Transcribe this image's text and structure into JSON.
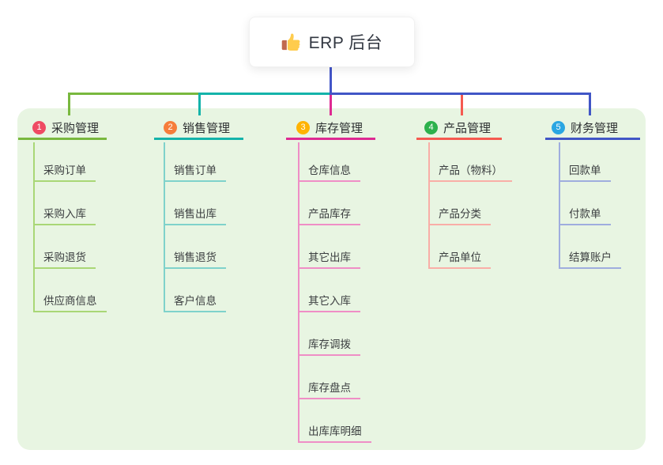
{
  "root": {
    "title": "ERP 后台",
    "icon": "thumbs-up-icon",
    "connector_color": "#4355c8"
  },
  "panel": {
    "background": "#e8f5e2"
  },
  "branches": [
    {
      "badge": "1",
      "badge_color": "#ef4b63",
      "label": "采购管理",
      "line_color": "#79b83e",
      "child_line_color": "#a9d776",
      "children": [
        "采购订单",
        "采购入库",
        "采购退货",
        "供应商信息"
      ]
    },
    {
      "badge": "2",
      "badge_color": "#f67d3b",
      "label": "销售管理",
      "line_color": "#14b3aa",
      "child_line_color": "#7fd2cb",
      "children": [
        "销售订单",
        "销售出库",
        "销售退货",
        "客户信息"
      ]
    },
    {
      "badge": "3",
      "badge_color": "#ffb302",
      "label": "库存管理",
      "line_color": "#de2a92",
      "child_line_color": "#ef8ec6",
      "children": [
        "仓库信息",
        "产品库存",
        "其它出库",
        "其它入库",
        "库存调拨",
        "库存盘点",
        "出库库明细"
      ]
    },
    {
      "badge": "4",
      "badge_color": "#2db14c",
      "label": "产品管理",
      "line_color": "#f55a50",
      "child_line_color": "#f9aea7",
      "children": [
        "产品（物料）",
        "产品分类",
        "产品单位"
      ]
    },
    {
      "badge": "5",
      "badge_color": "#2aa6e2",
      "label": "财务管理",
      "line_color": "#4156c6",
      "child_line_color": "#9fadde",
      "children": [
        "回款单",
        "付款单",
        "结算账户"
      ]
    }
  ]
}
